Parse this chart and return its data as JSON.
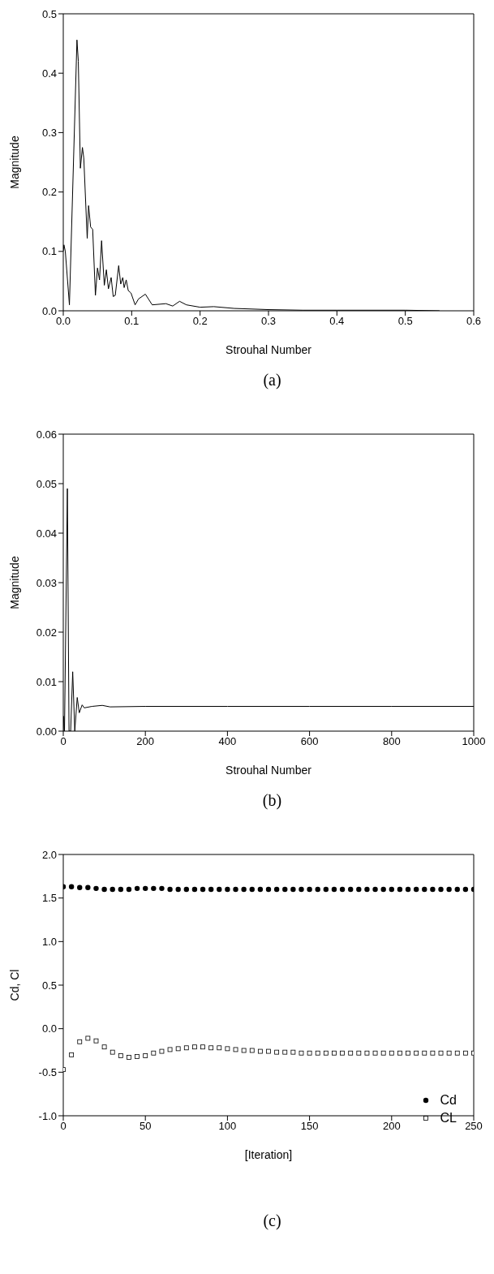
{
  "chart_data": [
    {
      "type": "line",
      "xlabel": "Strouhal Number",
      "ylabel": "Magnitude",
      "annotations": [
        "(a)"
      ],
      "xlim": [
        0,
        0.6
      ],
      "xticks": [
        {
          "value": 0,
          "label": "0.0"
        },
        0.1,
        0.2,
        0.3,
        0.4,
        0.5,
        0.6
      ],
      "ylim": [
        0,
        0.5
      ],
      "yticks": [
        {
          "value": 0,
          "label": "0.0"
        },
        0.1,
        0.2,
        0.3,
        0.4,
        0.5
      ],
      "x": [
        0,
        0.001,
        0.003,
        0.009,
        0.02,
        0.022,
        0.025,
        0.028,
        0.03,
        0.035,
        0.037,
        0.04,
        0.043,
        0.047,
        0.05,
        0.053,
        0.056,
        0.06,
        0.063,
        0.066,
        0.07,
        0.073,
        0.076,
        0.081,
        0.084,
        0.087,
        0.089,
        0.092,
        0.095,
        0.099,
        0.105,
        0.11,
        0.12,
        0.13,
        0.15,
        0.16,
        0.17,
        0.18,
        0.2,
        0.22,
        0.25,
        0.3,
        0.35,
        0.4,
        0.5,
        0.55
      ],
      "series": [
        {
          "color": "#000000",
          "values": [
            0.1,
            0.111,
            0.1,
            0.01,
            0.456,
            0.42,
            0.24,
            0.275,
            0.257,
            0.122,
            0.177,
            0.141,
            0.137,
            0.026,
            0.072,
            0.052,
            0.118,
            0.043,
            0.069,
            0.037,
            0.056,
            0.024,
            0.026,
            0.076,
            0.045,
            0.056,
            0.039,
            0.052,
            0.034,
            0.03,
            0.01,
            0.02,
            0.028,
            0.01,
            0.012,
            0.008,
            0.016,
            0.01,
            0.006,
            0.007,
            0.004,
            0.002,
            0.001,
            0.001,
            0.001,
            0
          ]
        }
      ]
    },
    {
      "type": "line",
      "xlabel": "Strouhal Number",
      "ylabel": "Magnitude",
      "annotations": [
        "(b)"
      ],
      "xlim": [
        0,
        1000
      ],
      "xticks": [
        0,
        200,
        400,
        600,
        800,
        1000
      ],
      "ylim": [
        0,
        0.06
      ],
      "yticks": [
        {
          "value": 0,
          "label": "0.00"
        },
        {
          "value": 0.01,
          "label": "0.01"
        },
        {
          "value": 0.02,
          "label": "0.02"
        },
        {
          "value": 0.03,
          "label": "0.03"
        },
        {
          "value": 0.04,
          "label": "0.04"
        },
        {
          "value": 0.05,
          "label": "0.05"
        },
        {
          "value": 0.06,
          "label": "0.06"
        }
      ],
      "x": [
        0,
        1,
        3,
        10,
        14,
        18,
        23,
        28,
        34,
        39,
        46,
        51,
        70,
        95,
        114,
        200,
        400,
        600,
        800,
        1000
      ],
      "series": [
        {
          "color": "#000000",
          "values": [
            0,
            0.003,
            0,
            0.049,
            0,
            0,
            0.012,
            0,
            0.0068,
            0.0037,
            0.0053,
            0.0047,
            0.005,
            0.0052,
            0.0049,
            0.005,
            0.005,
            0.005,
            0.005,
            0.005
          ]
        }
      ]
    },
    {
      "type": "scatter",
      "xlabel": "[Iteration]",
      "ylabel": "Cd, Cl",
      "annotations": [
        "(c)"
      ],
      "legend": "bottom right",
      "xlim": [
        0,
        250
      ],
      "xticks": [
        0,
        50,
        100,
        150,
        200,
        250
      ],
      "ylim": [
        -1,
        2
      ],
      "yticks": [
        {
          "value": -1,
          "label": "-1.0"
        },
        {
          "value": -0.5,
          "label": "-0.5"
        },
        {
          "value": 0,
          "label": "0.0"
        },
        {
          "value": 0.5,
          "label": "0.5"
        },
        {
          "value": 1,
          "label": "1.0"
        },
        {
          "value": 1.5,
          "label": "1.5"
        },
        {
          "value": 2,
          "label": "2.0"
        }
      ],
      "x": [
        0,
        5,
        10,
        15,
        20,
        25,
        30,
        35,
        40,
        45,
        50,
        55,
        60,
        65,
        70,
        75,
        80,
        85,
        90,
        95,
        100,
        105,
        110,
        115,
        120,
        125,
        130,
        135,
        140,
        145,
        150,
        155,
        160,
        165,
        170,
        175,
        180,
        185,
        190,
        195,
        200,
        205,
        210,
        215,
        220,
        225,
        230,
        235,
        240,
        245,
        250
      ],
      "series": [
        {
          "name": "Cd",
          "color": "#000000",
          "marker": "circle",
          "values": [
            1.63,
            1.63,
            1.62,
            1.62,
            1.61,
            1.6,
            1.6,
            1.6,
            1.6,
            1.61,
            1.61,
            1.61,
            1.61,
            1.6,
            1.6,
            1.6,
            1.6,
            1.6,
            1.6,
            1.6,
            1.6,
            1.6,
            1.6,
            1.6,
            1.6,
            1.6,
            1.6,
            1.6,
            1.6,
            1.6,
            1.6,
            1.6,
            1.6,
            1.6,
            1.6,
            1.6,
            1.6,
            1.6,
            1.6,
            1.6,
            1.6,
            1.6,
            1.6,
            1.6,
            1.6,
            1.6,
            1.6,
            1.6,
            1.6,
            1.6,
            1.6
          ]
        },
        {
          "name": "CL",
          "color": "#000000",
          "marker": "square",
          "values": [
            -0.47,
            -0.3,
            -0.15,
            -0.11,
            -0.14,
            -0.21,
            -0.27,
            -0.31,
            -0.33,
            -0.32,
            -0.31,
            -0.28,
            -0.26,
            -0.24,
            -0.23,
            -0.22,
            -0.21,
            -0.21,
            -0.22,
            -0.22,
            -0.23,
            -0.24,
            -0.25,
            -0.25,
            -0.26,
            -0.26,
            -0.27,
            -0.27,
            -0.27,
            -0.28,
            -0.28,
            -0.28,
            -0.28,
            -0.28,
            -0.28,
            -0.28,
            -0.28,
            -0.28,
            -0.28,
            -0.28,
            -0.28,
            -0.28,
            -0.28,
            -0.28,
            -0.28,
            -0.28,
            -0.28,
            -0.28,
            -0.28,
            -0.28,
            -0.28
          ]
        }
      ]
    }
  ]
}
